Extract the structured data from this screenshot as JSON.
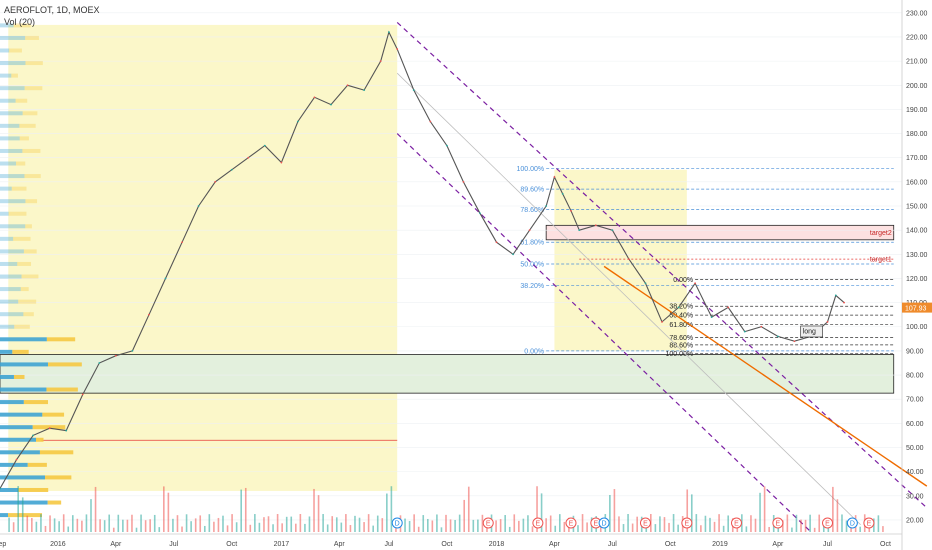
{
  "header": {
    "symbol_line": "AEROFLOT, 1D, MOEX",
    "volume_label": "Vol (20)"
  },
  "chart_data": {
    "type": "line",
    "title": "AEROFLOT, 1D, MOEX",
    "xlabel": "",
    "ylabel": "",
    "ylim": [
      15,
      232
    ],
    "price_ticks": [
      "230.00",
      "220.00",
      "210.00",
      "200.00",
      "190.00",
      "180.00",
      "170.00",
      "160.00",
      "150.00",
      "140.00",
      "130.00",
      "120.00",
      "110.00",
      "100.00",
      "90.00",
      "80.00",
      "70.00",
      "60.00",
      "50.00",
      "40.00",
      "30.00",
      "20.00"
    ],
    "price_tick_values": [
      230,
      220,
      210,
      200,
      190,
      180,
      170,
      160,
      150,
      140,
      130,
      120,
      110,
      100,
      90,
      80,
      70,
      60,
      50,
      40,
      30,
      20
    ],
    "time_ticks": [
      "Sep",
      "2016",
      "Apr",
      "Jul",
      "Oct",
      "2017",
      "Apr",
      "Jul",
      "Oct",
      "2018",
      "Apr",
      "Jul",
      "Oct",
      "2019",
      "Apr",
      "Jul",
      "Oct"
    ],
    "time_tick_index": [
      0,
      7,
      14,
      21,
      28,
      34,
      41,
      47,
      54,
      60,
      67,
      74,
      81,
      87,
      94,
      100,
      107
    ],
    "last_price": "107.93",
    "last_price_value": 107.93,
    "price_series": {
      "name": "",
      "x_index": [
        0,
        2,
        4,
        6,
        8,
        10,
        12,
        14,
        16,
        18,
        20,
        22,
        24,
        26,
        28,
        30,
        32,
        34,
        36,
        38,
        40,
        42,
        44,
        46,
        47,
        48,
        50,
        52,
        54,
        56,
        58,
        60,
        62,
        64,
        66,
        67,
        68,
        69,
        70,
        72,
        74,
        76,
        78,
        80,
        82,
        84,
        86,
        88,
        90,
        92,
        94,
        96,
        98,
        100,
        101,
        102
      ],
      "values": [
        33,
        45,
        55,
        58,
        57,
        72,
        85,
        88,
        90,
        105,
        120,
        135,
        150,
        160,
        165,
        170,
        175,
        168,
        185,
        195,
        192,
        200,
        198,
        210,
        222,
        215,
        198,
        185,
        175,
        160,
        147,
        135,
        130,
        140,
        150,
        162,
        155,
        148,
        140,
        142,
        140,
        128,
        118,
        102,
        108,
        118,
        104,
        108,
        98,
        100,
        96,
        94,
        96,
        102,
        113,
        110
      ]
    },
    "volume_series": {
      "name": "Vol (20)",
      "note_colors": [
        "#26a69a",
        "#ef5350"
      ]
    },
    "fib_retracement_1": {
      "levels": [
        "100.00%",
        "89.60%",
        "78.60%",
        "61.80%",
        "50.00%",
        "38.20%",
        "0.00%"
      ],
      "prices": [
        165.5,
        157,
        148.5,
        135,
        126,
        117,
        90
      ]
    },
    "fib_retracement_2": {
      "levels": [
        "0.00%",
        "38.20%",
        "50.40%",
        "61.80%",
        "78.60%",
        "88.60%",
        "100.00%"
      ],
      "prices": [
        119.5,
        108.5,
        104.8,
        101,
        95.5,
        92.5,
        89
      ]
    },
    "annotations": {
      "target1": "target1",
      "target2": "target2",
      "long_label": "long"
    },
    "target1_price": 128,
    "target2_price_top": 142,
    "target2_price_bottom": 136,
    "green_zone_top": 88.5,
    "green_zone_bottom": 72.5,
    "support_line_price": 53,
    "event_markers": [
      "D",
      "E",
      "E",
      "E",
      "E",
      "D",
      "E",
      "E",
      "E",
      "E",
      "E",
      "E",
      "D"
    ],
    "event_marker_index": [
      48,
      59,
      65,
      69,
      72,
      73,
      78,
      83,
      89,
      94,
      100,
      105,
      103
    ],
    "grid": true,
    "legend_position": "top-left",
    "colors": {
      "up": "#26a69a",
      "down": "#ef5350",
      "price_line": "#555555",
      "channel": "#7b1fa2",
      "fib": "#4a90d9",
      "trend": "#ef6c00",
      "vp_up": "#3fa3d1",
      "vp_down": "#f5c842",
      "range_fill": "#fbf7c9",
      "green_zone": "#e3f0dd",
      "target_zone": "#fde1e1"
    }
  }
}
